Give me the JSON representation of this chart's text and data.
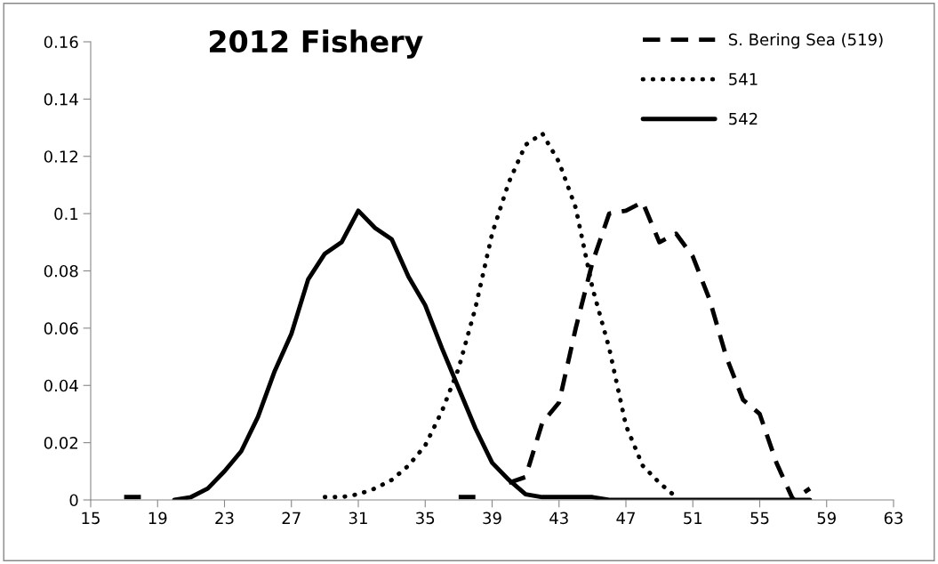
{
  "chart_data": {
    "type": "line",
    "title": "2012 Fishery",
    "xlim": [
      15,
      63
    ],
    "xticks": [
      15,
      19,
      23,
      27,
      31,
      35,
      39,
      43,
      47,
      51,
      55,
      59,
      63
    ],
    "ylim": [
      0,
      0.16
    ],
    "yticks": [
      0,
      0.02,
      0.04,
      0.06,
      0.08,
      0.1,
      0.12,
      0.14,
      0.16
    ],
    "grid": false,
    "legend": "top right",
    "marker": "none",
    "series": [
      {
        "name": "S. Bering Sea (519)",
        "color": "#000000",
        "line_style": "dashed",
        "x": [
          17,
          18,
          19,
          37,
          38,
          39,
          40,
          41,
          42,
          43,
          44,
          45,
          46,
          47,
          48,
          49,
          50,
          51,
          52,
          53,
          54,
          55,
          56,
          57,
          58
        ],
        "values": [
          0.001,
          0.001,
          null,
          0.001,
          0.001,
          null,
          0.006,
          0.008,
          0.027,
          0.034,
          0.06,
          0.083,
          0.1,
          0.101,
          0.104,
          0.09,
          0.093,
          0.085,
          0.07,
          0.05,
          0.035,
          0.03,
          0.013,
          0,
          0.004
        ]
      },
      {
        "name": "541",
        "color": "#000000",
        "line_style": "dotted",
        "x": [
          29,
          30,
          31,
          32,
          33,
          34,
          35,
          36,
          37,
          38,
          39,
          40,
          41,
          42,
          43,
          44,
          45,
          46,
          47,
          48,
          49,
          50
        ],
        "values": [
          0.001,
          0.001,
          0.002,
          0.004,
          0.007,
          0.012,
          0.019,
          0.031,
          0.046,
          0.067,
          0.093,
          0.111,
          0.124,
          0.128,
          0.118,
          0.102,
          0.074,
          0.053,
          0.026,
          0.012,
          0.006,
          0.001
        ]
      },
      {
        "name": "542",
        "color": "#000000",
        "line_style": "solid",
        "x": [
          20,
          21,
          22,
          23,
          24,
          25,
          26,
          27,
          28,
          29,
          30,
          31,
          32,
          33,
          34,
          35,
          36,
          37,
          38,
          39,
          40,
          41,
          42,
          43,
          44,
          45,
          46,
          47,
          48,
          49,
          50,
          51,
          52,
          53,
          54,
          55,
          56,
          57,
          58
        ],
        "values": [
          0,
          0.001,
          0.004,
          0.01,
          0.017,
          0.029,
          0.045,
          0.058,
          0.077,
          0.086,
          0.09,
          0.101,
          0.095,
          0.091,
          0.078,
          0.068,
          0.053,
          0.039,
          0.025,
          0.013,
          0.007,
          0.002,
          0.001,
          0.001,
          0.001,
          0.001,
          0,
          0,
          0,
          0,
          0,
          0,
          0,
          0,
          0,
          0,
          0,
          0,
          0
        ]
      }
    ]
  }
}
